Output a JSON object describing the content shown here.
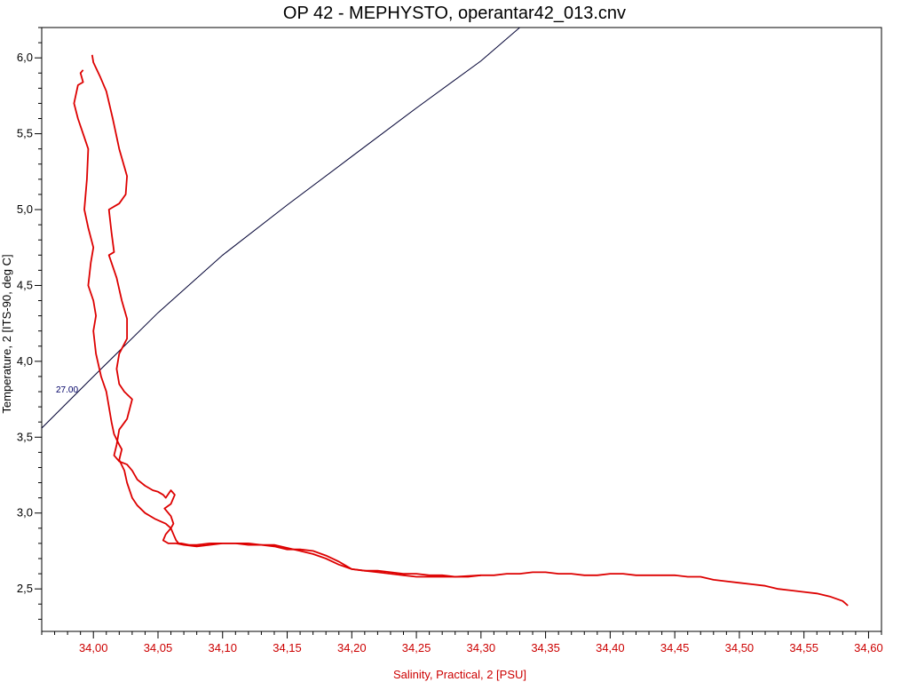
{
  "chart_data": {
    "type": "line",
    "title": "OP 42 - MEPHYSTO, operantar42_013.cnv",
    "xlabel": "Salinity, Practical, 2 [PSU]",
    "ylabel": "Temperature, 2 [ITS-90, deg C]",
    "xlim": [
      33.96,
      34.61
    ],
    "ylim": [
      2.22,
      6.2
    ],
    "x_ticks": [
      "34,00",
      "34,05",
      "34,10",
      "34,15",
      "34,20",
      "34,25",
      "34,30",
      "34,35",
      "34,40",
      "34,45",
      "34,50",
      "34,55",
      "34,60"
    ],
    "x_tick_values": [
      34.0,
      34.05,
      34.1,
      34.15,
      34.2,
      34.25,
      34.3,
      34.35,
      34.4,
      34.45,
      34.5,
      34.55,
      34.6
    ],
    "y_ticks": [
      "2,5",
      "3,0",
      "3,5",
      "4,0",
      "4,5",
      "5,0",
      "5,5",
      "6,0"
    ],
    "y_tick_values": [
      2.5,
      3.0,
      3.5,
      4.0,
      4.5,
      5.0,
      5.5,
      6.0
    ],
    "colors": {
      "profile": "#dd0000",
      "isopycnal": "#000033",
      "axis": "#000000",
      "x_axis_text": "#cc0000"
    },
    "isopycnal": {
      "label": "27.00",
      "x": [
        33.96,
        34.0,
        34.05,
        34.1,
        34.15,
        34.2,
        34.25,
        34.3,
        34.33
      ],
      "y": [
        3.56,
        3.9,
        4.32,
        4.7,
        5.03,
        5.35,
        5.67,
        5.98,
        6.2
      ]
    },
    "series": [
      {
        "x": [
          33.999,
          34.0,
          34.005,
          34.01,
          34.015,
          34.02,
          34.026,
          34.025,
          34.02,
          34.012,
          34.014,
          34.016,
          34.012,
          34.018,
          34.022,
          34.026,
          34.026,
          34.02,
          34.018,
          34.02,
          34.024,
          34.03,
          34.026,
          34.02,
          34.018,
          34.016,
          34.02,
          34.026,
          34.03,
          34.034,
          34.04,
          34.046,
          34.05,
          34.054,
          34.056,
          34.06,
          34.063,
          34.06,
          34.055,
          34.058,
          34.06,
          34.062,
          34.06,
          34.056,
          34.054,
          34.058,
          34.06,
          34.064,
          34.07,
          34.08,
          34.09,
          34.1,
          34.11,
          34.12,
          34.13,
          34.14,
          34.15,
          34.16,
          34.17,
          34.18,
          34.19,
          34.2,
          34.21,
          34.22,
          34.23,
          34.24,
          34.25,
          34.26,
          34.27,
          34.28,
          34.29,
          34.3,
          34.31,
          34.32,
          34.33,
          34.34,
          34.35,
          34.36,
          34.37,
          34.38,
          34.39,
          34.4,
          34.41,
          34.42,
          34.43,
          34.44,
          34.45,
          34.46,
          34.47,
          34.48,
          34.49,
          34.5,
          34.51,
          34.52,
          34.53,
          34.54,
          34.55,
          34.56,
          34.57,
          34.58,
          34.584
        ],
        "y": [
          6.02,
          5.97,
          5.88,
          5.78,
          5.6,
          5.4,
          5.22,
          5.1,
          5.04,
          5.0,
          4.85,
          4.72,
          4.7,
          4.55,
          4.4,
          4.28,
          4.15,
          4.05,
          3.95,
          3.85,
          3.8,
          3.75,
          3.62,
          3.55,
          3.45,
          3.38,
          3.34,
          3.32,
          3.28,
          3.22,
          3.18,
          3.15,
          3.14,
          3.12,
          3.1,
          3.15,
          3.12,
          3.06,
          3.03,
          3.0,
          2.98,
          2.93,
          2.9,
          2.86,
          2.82,
          2.8,
          2.8,
          2.8,
          2.79,
          2.78,
          2.79,
          2.8,
          2.8,
          2.79,
          2.79,
          2.78,
          2.76,
          2.76,
          2.75,
          2.72,
          2.68,
          2.63,
          2.62,
          2.61,
          2.6,
          2.59,
          2.58,
          2.58,
          2.58,
          2.58,
          2.58,
          2.59,
          2.59,
          2.6,
          2.6,
          2.61,
          2.61,
          2.6,
          2.6,
          2.59,
          2.59,
          2.6,
          2.6,
          2.59,
          2.59,
          2.59,
          2.59,
          2.58,
          2.58,
          2.56,
          2.55,
          2.54,
          2.53,
          2.52,
          2.5,
          2.49,
          2.48,
          2.47,
          2.45,
          2.42,
          2.39
        ]
      },
      {
        "x": [
          33.992,
          33.99,
          33.992,
          33.988,
          33.985,
          33.988,
          33.992,
          33.996,
          33.995,
          33.993,
          33.996,
          34.0,
          33.998,
          33.996,
          34.0,
          34.002,
          34.0,
          34.002,
          34.006,
          34.01,
          34.012,
          34.014,
          34.016,
          34.02,
          34.022,
          34.02,
          34.024,
          34.026,
          34.03,
          34.034,
          34.04,
          34.048,
          34.056,
          34.06,
          34.062,
          34.064,
          34.066,
          34.068,
          34.074,
          34.08,
          34.09,
          34.1,
          34.11,
          34.12,
          34.13,
          34.14,
          34.15,
          34.16,
          34.17,
          34.18,
          34.19,
          34.2,
          34.21,
          34.22,
          34.23,
          34.24,
          34.25,
          34.26,
          34.27,
          34.28,
          34.3
        ],
        "y": [
          5.92,
          5.9,
          5.84,
          5.82,
          5.7,
          5.6,
          5.5,
          5.4,
          5.2,
          5.0,
          4.88,
          4.75,
          4.65,
          4.5,
          4.4,
          4.3,
          4.2,
          4.05,
          3.9,
          3.8,
          3.7,
          3.6,
          3.52,
          3.45,
          3.42,
          3.35,
          3.28,
          3.2,
          3.1,
          3.05,
          3.0,
          2.96,
          2.93,
          2.9,
          2.86,
          2.82,
          2.8,
          2.8,
          2.79,
          2.79,
          2.8,
          2.8,
          2.8,
          2.8,
          2.79,
          2.79,
          2.77,
          2.75,
          2.73,
          2.7,
          2.66,
          2.63,
          2.62,
          2.62,
          2.61,
          2.6,
          2.6,
          2.59,
          2.59,
          2.58,
          2.59
        ]
      }
    ]
  }
}
